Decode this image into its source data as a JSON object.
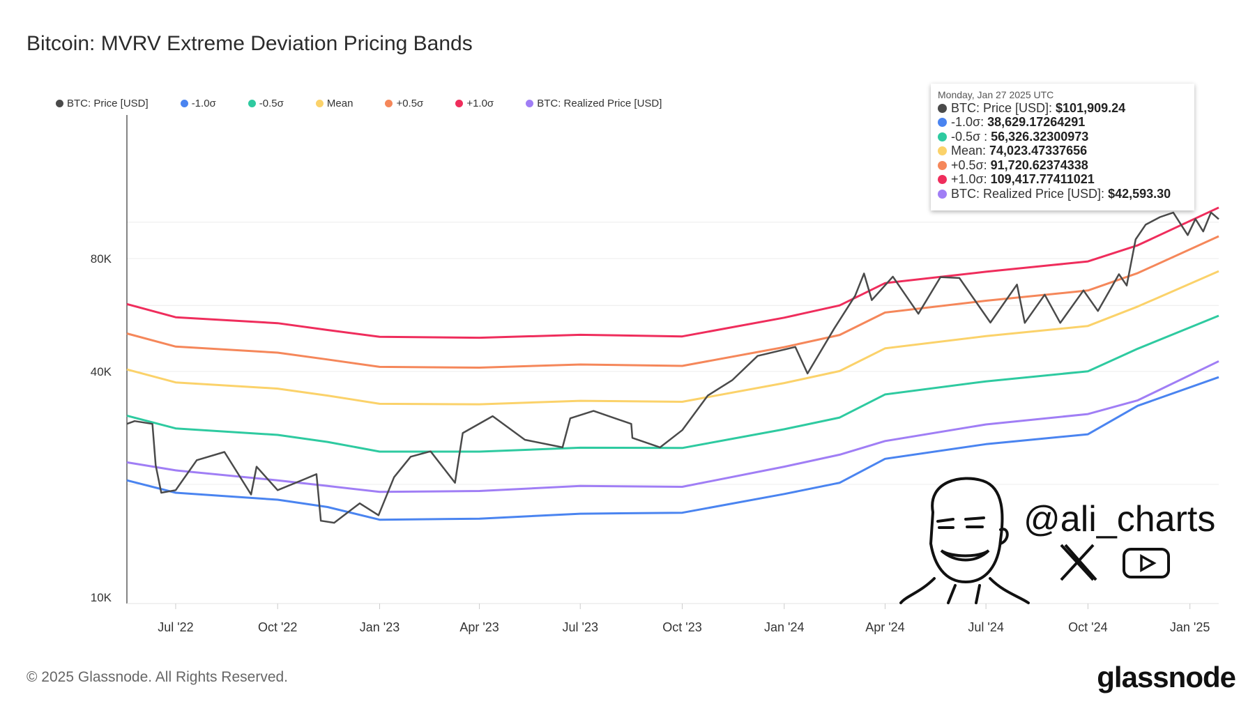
{
  "title": "Bitcoin: MVRV Extreme Deviation Pricing Bands",
  "legend": [
    {
      "label": "BTC: Price [USD]",
      "color": "#4a4a4a"
    },
    {
      "label": "-1.0σ",
      "color": "#4a84f0"
    },
    {
      "label": "-0.5σ",
      "color": "#2ecaa0"
    },
    {
      "label": "Mean",
      "color": "#fbd26a"
    },
    {
      "label": "+0.5σ",
      "color": "#f5875a"
    },
    {
      "label": "+1.0σ",
      "color": "#ef2d5c"
    },
    {
      "label": "BTC: Realized Price [USD]",
      "color": "#a07ef5"
    }
  ],
  "tooltip": {
    "date": "Monday, Jan 27 2025 UTC",
    "rows": [
      {
        "label": "BTC: Price [USD]:",
        "value": "$101,909.24",
        "color": "#4a4a4a"
      },
      {
        "label": "-1.0σ:",
        "value": "38,629.17264291",
        "color": "#4a84f0"
      },
      {
        "label": "-0.5σ :",
        "value": "56,326.32300973",
        "color": "#2ecaa0"
      },
      {
        "label": "Mean:",
        "value": "74,023.47337656",
        "color": "#fbd26a"
      },
      {
        "label": "+0.5σ:",
        "value": "91,720.62374338",
        "color": "#f5875a"
      },
      {
        "label": "+1.0σ:",
        "value": "109,417.77411021",
        "color": "#ef2d5c"
      },
      {
        "label": "BTC: Realized Price [USD]:",
        "value": "$42,593.30",
        "color": "#a07ef5"
      }
    ]
  },
  "watermark": {
    "handle": "@ali_charts",
    "icons": [
      "x-logo-icon",
      "youtube-icon"
    ]
  },
  "footer": {
    "copyright": "© 2025 Glassnode. All Rights Reserved.",
    "logo": "glassnode"
  },
  "chart_data": {
    "type": "line",
    "title": "Bitcoin: MVRV Extreme Deviation Pricing Bands",
    "yscale": "log",
    "ylim": [
      10000,
      130000
    ],
    "xlim": [
      "2022-05-18",
      "2025-01-27"
    ],
    "y_ticks": [
      {
        "value": 10000,
        "label": "10K"
      },
      {
        "value": 40000,
        "label": "40K"
      },
      {
        "value": 80000,
        "label": "80K"
      }
    ],
    "x_ticks": [
      {
        "date": "2022-07-01",
        "label": "Jul '22"
      },
      {
        "date": "2022-10-01",
        "label": "Oct '22"
      },
      {
        "date": "2023-01-01",
        "label": "Jan '23"
      },
      {
        "date": "2023-04-01",
        "label": "Apr '23"
      },
      {
        "date": "2023-07-01",
        "label": "Jul '23"
      },
      {
        "date": "2023-10-01",
        "label": "Oct '23"
      },
      {
        "date": "2024-01-01",
        "label": "Jan '24"
      },
      {
        "date": "2024-04-01",
        "label": "Apr '24"
      },
      {
        "date": "2024-07-01",
        "label": "Jul '24"
      },
      {
        "date": "2024-10-01",
        "label": "Oct '24"
      },
      {
        "date": "2025-01-01",
        "label": "Jan '25"
      }
    ],
    "grid": true,
    "legend_position": "top-left",
    "band_dates": [
      "2022-05-18",
      "2022-07-01",
      "2022-10-01",
      "2022-11-15",
      "2023-01-01",
      "2023-04-01",
      "2023-07-01",
      "2023-10-01",
      "2024-01-01",
      "2024-02-20",
      "2024-04-01",
      "2024-07-01",
      "2024-10-01",
      "2024-11-15",
      "2025-01-27"
    ],
    "series": [
      {
        "name": "-1.0σ",
        "color": "#4a84f0",
        "values": [
          20500,
          19000,
          18200,
          17400,
          16100,
          16200,
          16700,
          16800,
          18850,
          20200,
          23400,
          25600,
          27200,
          32400,
          38629
        ]
      },
      {
        "name": "-0.5σ",
        "color": "#2ecaa0",
        "values": [
          30500,
          28200,
          27100,
          25950,
          24450,
          24450,
          25050,
          25000,
          28050,
          30150,
          34750,
          37650,
          40050,
          46000,
          56326
        ]
      },
      {
        "name": "Mean",
        "color": "#fbd26a",
        "values": [
          40500,
          37400,
          36000,
          34500,
          32800,
          32700,
          33400,
          33200,
          37250,
          40100,
          46100,
          49700,
          52900,
          59600,
          74023
        ]
      },
      {
        "name": "+0.5σ",
        "color": "#f5875a",
        "values": [
          50500,
          46600,
          44900,
          43050,
          41150,
          40950,
          41750,
          41400,
          46450,
          50050,
          57450,
          61750,
          65750,
          73200,
          91721
        ]
      },
      {
        "name": "+1.0σ",
        "color": "#ef2d5c",
        "values": [
          60500,
          55800,
          53800,
          51600,
          49500,
          49200,
          50100,
          49600,
          55650,
          60000,
          68800,
          73800,
          78600,
          86800,
          109418
        ]
      },
      {
        "name": "BTC: Realized Price [USD]",
        "color": "#a07ef5",
        "values": [
          22900,
          21800,
          20500,
          19800,
          19100,
          19200,
          19800,
          19700,
          22300,
          24000,
          26100,
          28900,
          30800,
          33500,
          42593
        ]
      }
    ],
    "price": {
      "name": "BTC: Price [USD]",
      "color": "#4a4a4a",
      "points": [
        [
          "2022-05-18",
          29000
        ],
        [
          "2022-05-25",
          29500
        ],
        [
          "2022-06-10",
          29000
        ],
        [
          "2022-06-13",
          22500
        ],
        [
          "2022-06-18",
          19000
        ],
        [
          "2022-07-01",
          19300
        ],
        [
          "2022-07-20",
          23200
        ],
        [
          "2022-08-14",
          24400
        ],
        [
          "2022-09-07",
          18800
        ],
        [
          "2022-09-12",
          22300
        ],
        [
          "2022-10-01",
          19300
        ],
        [
          "2022-10-26",
          20700
        ],
        [
          "2022-11-05",
          21300
        ],
        [
          "2022-11-09",
          16000
        ],
        [
          "2022-11-21",
          15800
        ],
        [
          "2022-12-14",
          17800
        ],
        [
          "2022-12-31",
          16550
        ],
        [
          "2023-01-14",
          20900
        ],
        [
          "2023-01-29",
          23700
        ],
        [
          "2023-02-16",
          24500
        ],
        [
          "2023-03-10",
          20200
        ],
        [
          "2023-03-17",
          27400
        ],
        [
          "2023-04-13",
          30400
        ],
        [
          "2023-05-12",
          26300
        ],
        [
          "2023-06-15",
          25100
        ],
        [
          "2023-06-22",
          30000
        ],
        [
          "2023-07-13",
          31400
        ],
        [
          "2023-08-16",
          29000
        ],
        [
          "2023-08-17",
          26600
        ],
        [
          "2023-09-11",
          25100
        ],
        [
          "2023-10-01",
          27900
        ],
        [
          "2023-10-24",
          34500
        ],
        [
          "2023-11-15",
          37900
        ],
        [
          "2023-12-08",
          44000
        ],
        [
          "2024-01-11",
          46500
        ],
        [
          "2024-01-22",
          39500
        ],
        [
          "2024-02-15",
          52000
        ],
        [
          "2024-03-05",
          63700
        ],
        [
          "2024-03-13",
          73000
        ],
        [
          "2024-03-20",
          62000
        ],
        [
          "2024-04-08",
          71600
        ],
        [
          "2024-05-01",
          57000
        ],
        [
          "2024-05-21",
          71400
        ],
        [
          "2024-06-07",
          71000
        ],
        [
          "2024-07-05",
          54000
        ],
        [
          "2024-07-29",
          68200
        ],
        [
          "2024-08-05",
          53900
        ],
        [
          "2024-08-23",
          64100
        ],
        [
          "2024-09-06",
          53900
        ],
        [
          "2024-09-27",
          65800
        ],
        [
          "2024-10-10",
          58000
        ],
        [
          "2024-10-29",
          72700
        ],
        [
          "2024-11-05",
          67800
        ],
        [
          "2024-11-13",
          90000
        ],
        [
          "2024-11-22",
          98500
        ],
        [
          "2024-12-05",
          103200
        ],
        [
          "2024-12-17",
          106100
        ],
        [
          "2024-12-30",
          92400
        ],
        [
          "2025-01-06",
          102000
        ],
        [
          "2025-01-13",
          94500
        ],
        [
          "2025-01-20",
          106200
        ],
        [
          "2025-01-27",
          101909
        ]
      ]
    }
  }
}
